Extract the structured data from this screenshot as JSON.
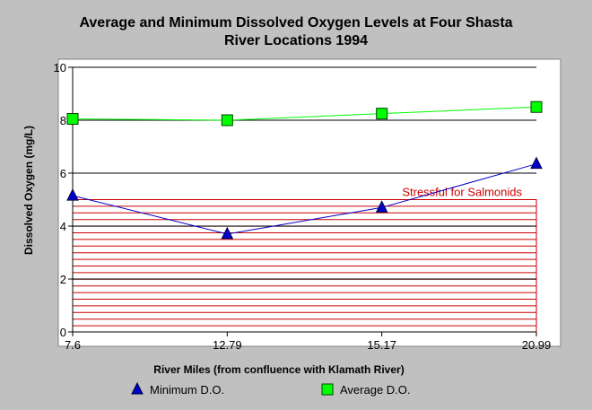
{
  "chart_data": {
    "type": "line",
    "title_line1": "Average and Minimum Dissolved Oxygen Levels at Four Shasta",
    "title_line2": "River Locations 1994",
    "xlabel": "River Miles (from confluence with Klamath River)",
    "ylabel": "Dissolved Oxygen (mg/L)",
    "categories": [
      "7.6",
      "12.79",
      "15.17",
      "20.99"
    ],
    "ylim": [
      0,
      10
    ],
    "yticks": [
      "0",
      "2",
      "4",
      "6",
      "8",
      "10"
    ],
    "grid": "horizontal",
    "legend_position": "bottom",
    "series": [
      {
        "name": "Minimum D.O.",
        "values": [
          5.15,
          3.7,
          4.7,
          6.35
        ],
        "color": "#0000cc",
        "marker": "triangle"
      },
      {
        "name": "Average D.O.",
        "values": [
          8.05,
          8.0,
          8.25,
          8.5
        ],
        "color": "#00ff00",
        "marker": "square"
      }
    ],
    "stress_band": {
      "label": "Stressful for Salmonids",
      "y_from": 0,
      "y_to": 5,
      "color": "#cc0000"
    }
  }
}
